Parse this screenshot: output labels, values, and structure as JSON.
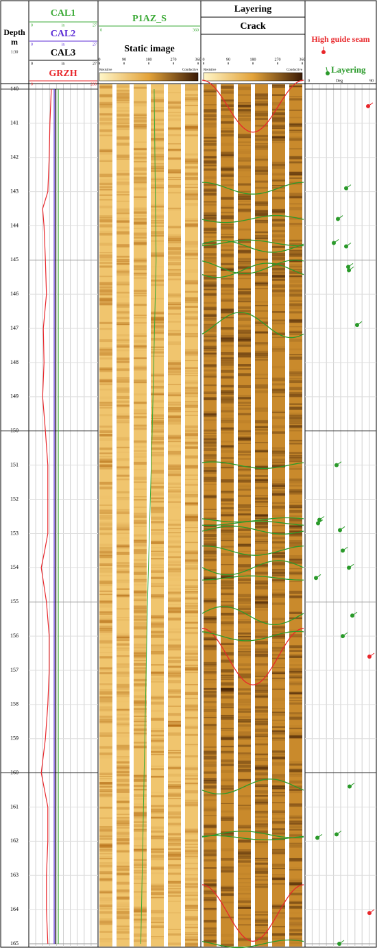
{
  "depth_track": {
    "title": "Depth",
    "unit": "m",
    "scale": "1:30",
    "range": [
      140,
      165
    ],
    "ticks": [
      140,
      141,
      142,
      143,
      144,
      145,
      146,
      147,
      148,
      149,
      150,
      151,
      152,
      153,
      154,
      155,
      156,
      157,
      158,
      159,
      160,
      161,
      162,
      163,
      164,
      165
    ]
  },
  "curve_track": {
    "curves": [
      {
        "name": "CAL1",
        "color": "#3aa935",
        "unit": "in",
        "range": [
          0,
          27
        ],
        "depths": [
          140,
          165
        ],
        "values": [
          11.5,
          11.5
        ]
      },
      {
        "name": "CAL2",
        "color": "#5b2bd6",
        "unit": "in",
        "range": [
          0,
          27
        ],
        "depths": [
          140,
          165
        ],
        "values": [
          9.9,
          9.9
        ]
      },
      {
        "name": "CAL3",
        "color": "#000000",
        "unit": "in",
        "range": [
          0,
          27
        ],
        "depths": [
          140,
          165
        ],
        "values": [
          10.4,
          10.4
        ]
      },
      {
        "name": "GRZH",
        "color": "#e8262a",
        "range": [
          0,
          200
        ],
        "depths": [
          140,
          141,
          142,
          143,
          143.5,
          144,
          145,
          146,
          147,
          148,
          149,
          150,
          151,
          152,
          153,
          153.5,
          154,
          155,
          156,
          157,
          158,
          159,
          160,
          161,
          162,
          163,
          164,
          165
        ],
        "values": [
          65,
          61,
          59,
          55,
          40,
          44,
          48,
          51,
          42,
          44,
          40,
          48,
          55,
          55,
          55,
          46,
          36,
          51,
          59,
          59,
          55,
          48,
          36,
          55,
          55,
          51,
          51,
          55
        ]
      }
    ]
  },
  "static_image": {
    "curve": {
      "name": "P1AZ_S",
      "color": "#3aa935",
      "range": [
        0,
        360
      ],
      "depths": [
        140,
        145,
        150,
        155,
        160,
        165
      ],
      "values": [
        197,
        204,
        190,
        173,
        161,
        149
      ]
    },
    "title": "Static image",
    "ticks": [
      0,
      90,
      180,
      270,
      360
    ],
    "low_label": "Resistive",
    "high_label": "Conductive"
  },
  "dynamic_image": {
    "titles": [
      "Layering",
      "Crack"
    ],
    "ticks": [
      0,
      90,
      180,
      270,
      360
    ],
    "low_label": "Resistive",
    "high_label": "Conductive"
  },
  "dip_track": {
    "legend": [
      {
        "name": "High guide seam",
        "color": "#e8262a"
      },
      {
        "name": "Layering",
        "color": "#2a9a2a"
      }
    ],
    "range": [
      0,
      90
    ],
    "unit": "Deg",
    "crack": {
      "depths": [
        140.5,
        156.6,
        164.1
      ],
      "dips": [
        87,
        89,
        89
      ]
    },
    "layering": {
      "depths": [
        142.9,
        143.8,
        144.5,
        144.6,
        145.2,
        145.3,
        146.9,
        151.0,
        152.6,
        152.7,
        152.9,
        153.5,
        154.0,
        154.3,
        155.4,
        156.0,
        160.4,
        161.8,
        161.9,
        165.0
      ],
      "dips": [
        55,
        43,
        37,
        55,
        58,
        59,
        71,
        41,
        16,
        14,
        46,
        50,
        59,
        11,
        64,
        50,
        60,
        41,
        13,
        45
      ]
    }
  }
}
